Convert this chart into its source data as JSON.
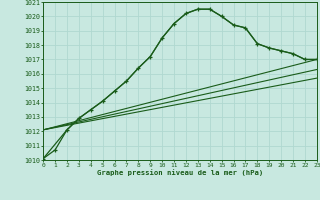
{
  "title": "Graphe pression niveau de la mer (hPa)",
  "xlim": [
    0,
    23
  ],
  "ylim": [
    1010,
    1021
  ],
  "xticks": [
    0,
    1,
    2,
    3,
    4,
    5,
    6,
    7,
    8,
    9,
    10,
    11,
    12,
    13,
    14,
    15,
    16,
    17,
    18,
    19,
    20,
    21,
    22,
    23
  ],
  "yticks": [
    1010,
    1011,
    1012,
    1013,
    1014,
    1015,
    1016,
    1017,
    1018,
    1019,
    1020,
    1021
  ],
  "background_color": "#c8e8e0",
  "grid_color": "#b0d8d0",
  "line_color": "#1a5c1a",
  "series_main": {
    "x": [
      0,
      1,
      2,
      3,
      4,
      5,
      6,
      7,
      8,
      9,
      10,
      11,
      12,
      13,
      14,
      15,
      16,
      17,
      18,
      19,
      20,
      21,
      22,
      23
    ],
    "y": [
      1010.1,
      1010.7,
      1012.1,
      1012.9,
      1013.5,
      1014.1,
      1014.8,
      1015.5,
      1016.4,
      1017.2,
      1018.5,
      1019.5,
      1020.2,
      1020.5,
      1020.5,
      1020.0,
      1019.4,
      1019.2,
      1018.1,
      1017.8,
      1017.6,
      1017.4,
      1017.0,
      1017.0
    ]
  },
  "series_smooth": {
    "x": [
      0,
      2,
      3,
      4,
      5,
      6,
      7,
      8,
      9,
      10,
      11,
      12,
      13,
      14,
      15,
      16,
      17,
      18,
      19,
      20,
      21,
      22,
      23
    ],
    "y": [
      1010.1,
      1012.1,
      1012.9,
      1013.5,
      1014.1,
      1014.8,
      1015.5,
      1016.4,
      1017.2,
      1018.5,
      1019.5,
      1020.2,
      1020.5,
      1020.5,
      1020.0,
      1019.4,
      1019.2,
      1018.1,
      1017.8,
      1017.6,
      1017.4,
      1017.0,
      1017.0
    ]
  },
  "line1": {
    "x": [
      0,
      23
    ],
    "y": [
      1012.1,
      1017.0
    ]
  },
  "line2": {
    "x": [
      0,
      23
    ],
    "y": [
      1012.1,
      1016.3
    ]
  },
  "line3": {
    "x": [
      0,
      23
    ],
    "y": [
      1012.1,
      1015.7
    ]
  }
}
